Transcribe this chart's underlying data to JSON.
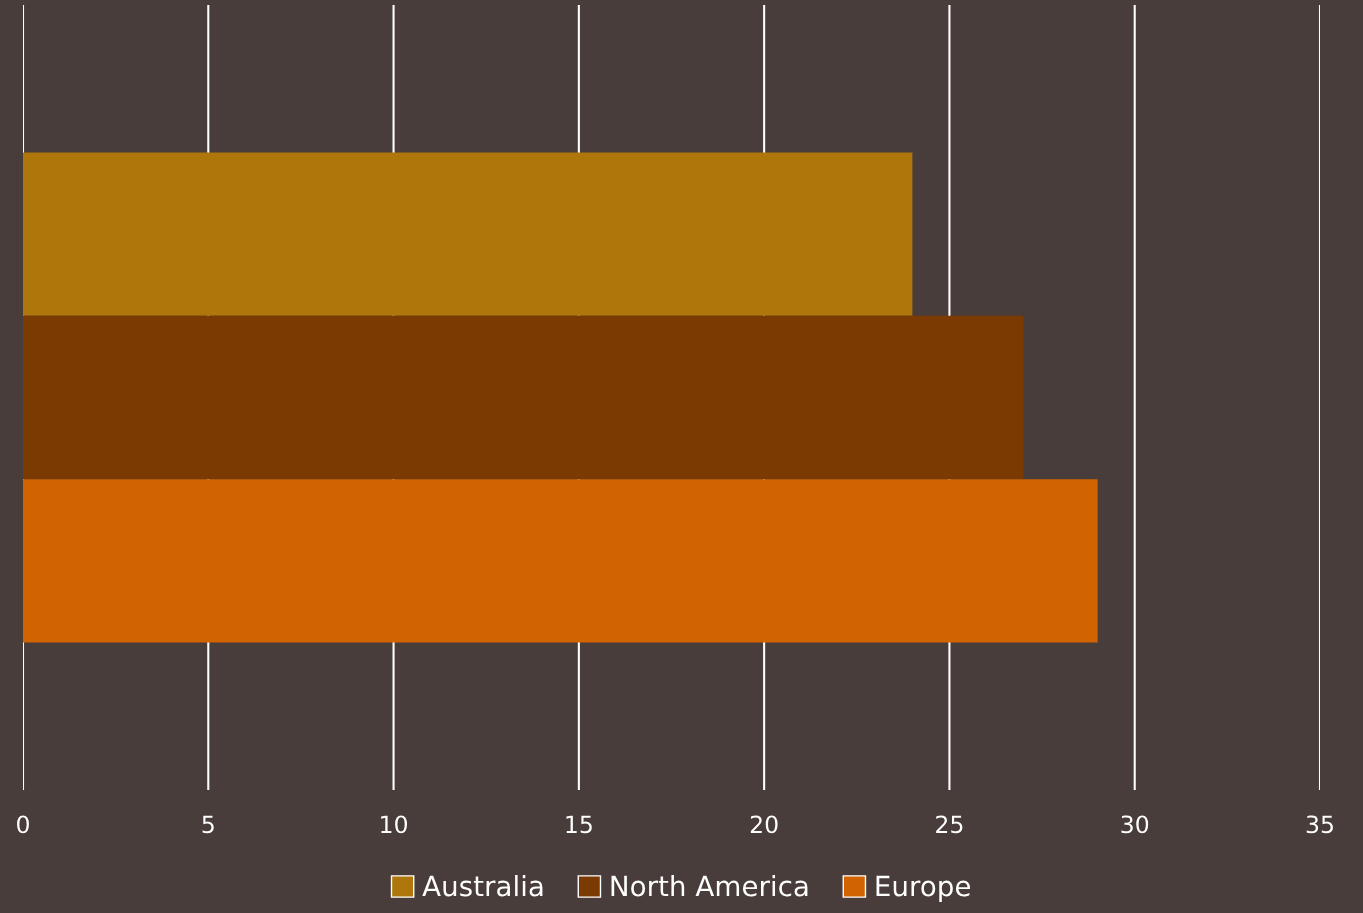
{
  "chart_data": {
    "type": "bar",
    "orientation": "horizontal",
    "categories": [
      null
    ],
    "series": [
      {
        "name": "Australia",
        "color": "#af770b",
        "values": [
          24
        ]
      },
      {
        "name": "North America",
        "color": "#7b3a02",
        "values": [
          27
        ]
      },
      {
        "name": "Europe",
        "color": "#d16400",
        "values": [
          29
        ]
      }
    ],
    "xlim": [
      0,
      35
    ],
    "xticks": [
      0,
      5,
      10,
      15,
      20,
      25,
      30,
      35
    ],
    "grid": "x",
    "legend": "bottom"
  }
}
